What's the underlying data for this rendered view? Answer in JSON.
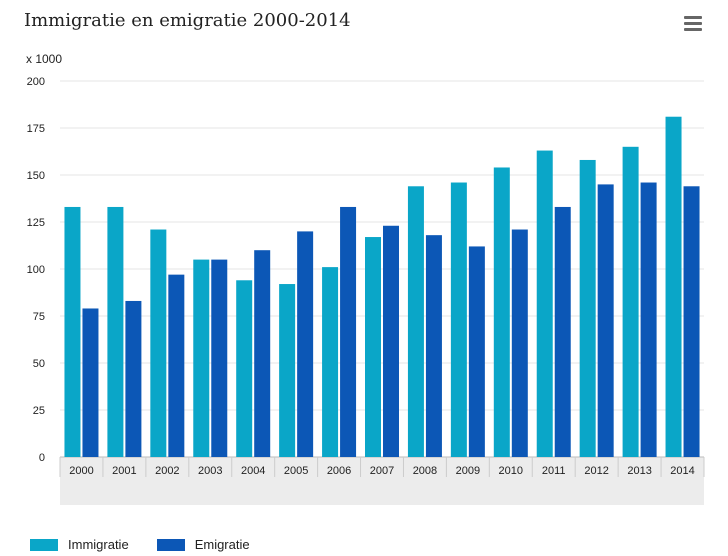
{
  "title": "Immigratie en emigratie 2000-2014",
  "menu_icon": "hamburger-menu-icon",
  "y_unit": "x 1000",
  "colors": {
    "immigratie": "#0aa6c8",
    "emigratie": "#0c57b6",
    "grid": "#e6e6e6",
    "xaxis_band": "#ececec"
  },
  "legend": [
    {
      "label": "Immigratie",
      "color_key": "immigratie"
    },
    {
      "label": "Emigratie",
      "color_key": "emigratie"
    }
  ],
  "chart_data": {
    "type": "bar",
    "title": "Immigratie en emigratie 2000-2014",
    "xlabel": "",
    "ylabel": "x 1000",
    "ylim": [
      0,
      200
    ],
    "yticks": [
      0,
      25,
      50,
      75,
      100,
      125,
      150,
      175,
      200
    ],
    "grid": true,
    "legend_position": "bottom-left",
    "categories": [
      "2000",
      "2001",
      "2002",
      "2003",
      "2004",
      "2005",
      "2006",
      "2007",
      "2008",
      "2009",
      "2010",
      "2011",
      "2012",
      "2013",
      "2014"
    ],
    "series": [
      {
        "name": "Immigratie",
        "values": [
          133,
          133,
          121,
          105,
          94,
          92,
          101,
          117,
          144,
          146,
          154,
          163,
          158,
          165,
          181
        ]
      },
      {
        "name": "Emigratie",
        "values": [
          79,
          83,
          97,
          105,
          110,
          120,
          133,
          123,
          118,
          112,
          121,
          133,
          145,
          146,
          144
        ]
      }
    ]
  }
}
